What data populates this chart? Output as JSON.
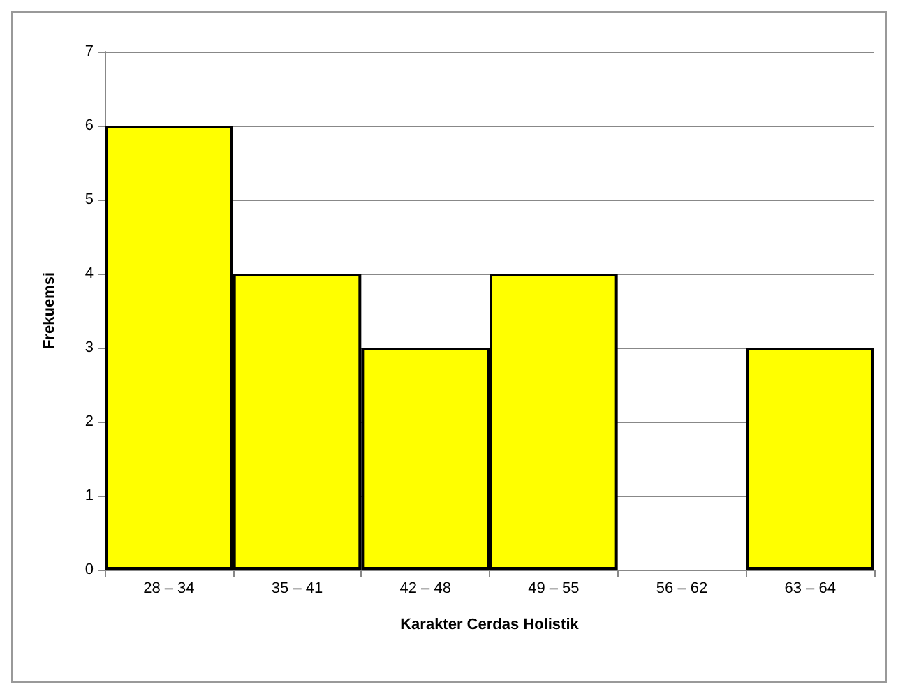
{
  "chart_data": {
    "type": "bar",
    "xlabel": "Karakter Cerdas Holistik",
    "ylabel": "Frekuemsi",
    "categories": [
      "28 – 34",
      "35 – 41",
      "42 – 48",
      "49 – 55",
      "56 – 62",
      "63 – 64"
    ],
    "values": [
      6,
      4,
      3,
      4,
      0,
      3
    ],
    "color": "#ffff00",
    "ylim": [
      0,
      7
    ],
    "yticks": [
      0,
      1,
      2,
      3,
      4,
      5,
      6,
      7
    ],
    "grid": "y"
  }
}
